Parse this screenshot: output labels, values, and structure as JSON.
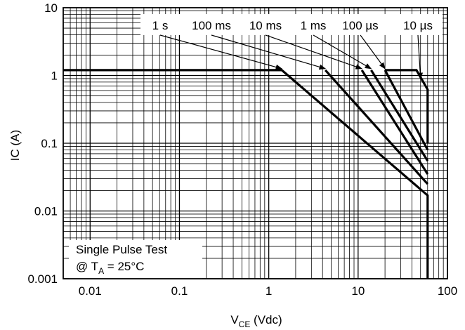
{
  "chart_data": {
    "type": "line",
    "xscale": "log",
    "yscale": "log",
    "xlim": [
      0.005,
      100
    ],
    "ylim": [
      0.001,
      10
    ],
    "grid": true,
    "x_ticks": [
      "0.01",
      "0.1",
      "1",
      "10",
      "100"
    ],
    "y_ticks": [
      "0.001",
      "0.01",
      "0.1",
      "1",
      "10"
    ],
    "xlabel": {
      "main": "V",
      "sub": "CE",
      "unit": " (Vdc)"
    },
    "ylabel": "IC (A)",
    "annotation": {
      "line1": "Single Pulse Test",
      "line2_prefix": "@ T",
      "line2_sub": "A",
      "line2_suffix": " = 25°C"
    },
    "series": [
      {
        "name": "1 s",
        "points": [
          [
            0.005,
            1.2
          ],
          [
            1.4,
            1.2
          ],
          [
            60,
            0.017
          ],
          [
            60,
            0.001
          ]
        ]
      },
      {
        "name": "100 ms",
        "points": [
          [
            4.3,
            1.2
          ],
          [
            60,
            0.025
          ]
        ]
      },
      {
        "name": "10 ms",
        "points": [
          [
            11,
            1.2
          ],
          [
            60,
            0.035
          ]
        ]
      },
      {
        "name": "1 ms",
        "points": [
          [
            14,
            1.2
          ],
          [
            60,
            0.055
          ]
        ]
      },
      {
        "name": "100 µs",
        "points": [
          [
            20,
            1.2
          ],
          [
            60,
            0.08
          ]
        ]
      },
      {
        "name": "10 µs",
        "points": [
          [
            20,
            1.2
          ],
          [
            45,
            1.2
          ],
          [
            60,
            0.62
          ],
          [
            60,
            0.1
          ]
        ]
      }
    ],
    "curve_labels": [
      {
        "text": "1 s",
        "arrow_to": [
          1.4,
          1.2
        ]
      },
      {
        "text": "100 ms",
        "arrow_to": [
          4.3,
          1.2
        ]
      },
      {
        "text": "10 ms",
        "arrow_to": [
          11,
          1.2
        ]
      },
      {
        "text": "1 ms",
        "arrow_to": [
          14,
          1.2
        ]
      },
      {
        "text": "100 µs",
        "arrow_to": [
          20,
          1.2
        ]
      },
      {
        "text": "10 µs",
        "arrow_to": [
          50,
          0.85
        ]
      }
    ]
  }
}
